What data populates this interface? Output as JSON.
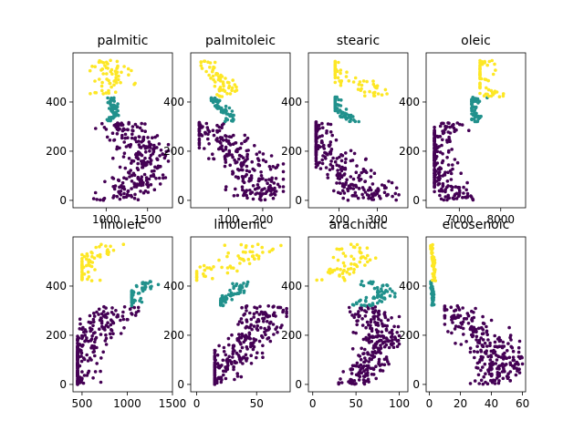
{
  "chart_data": [
    {
      "type": "scatter",
      "title": "palmitic",
      "xlim": [
        600,
        1800
      ],
      "ylim": [
        -30,
        600
      ],
      "xticks": [
        1000,
        1500
      ],
      "yticks": [
        0,
        200,
        400
      ],
      "x_clusters": [
        {
          "class": 0,
          "x_range": [
            850,
            1750
          ],
          "y_range": [
            0,
            320
          ]
        },
        {
          "class": 1,
          "x_range": [
            1000,
            1150
          ],
          "y_range": [
            320,
            420
          ]
        },
        {
          "class": 2,
          "x_range": [
            650,
            1350
          ],
          "y_range": [
            420,
            570
          ]
        }
      ]
    },
    {
      "type": "scatter",
      "title": "palmitoleic",
      "xlim": [
        -10,
        280
      ],
      "ylim": [
        -30,
        600
      ],
      "xticks": [
        100,
        200
      ],
      "yticks": [
        0,
        200,
        400
      ],
      "x_clusters": [
        {
          "class": 0,
          "x_range": [
            15,
            260
          ],
          "y_range": [
            0,
            320
          ]
        },
        {
          "class": 1,
          "x_range": [
            50,
            115
          ],
          "y_range": [
            320,
            420
          ]
        },
        {
          "class": 2,
          "x_range": [
            20,
            130
          ],
          "y_range": [
            420,
            570
          ]
        }
      ]
    },
    {
      "type": "scatter",
      "title": "stearic",
      "xlim": [
        120,
        380
      ],
      "ylim": [
        -30,
        600
      ],
      "xticks": [
        200,
        300
      ],
      "yticks": [
        0,
        200,
        400
      ],
      "x_clusters": [
        {
          "class": 0,
          "x_range": [
            140,
            370
          ],
          "y_range": [
            0,
            320
          ]
        },
        {
          "class": 1,
          "x_range": [
            190,
            260
          ],
          "y_range": [
            320,
            420
          ]
        },
        {
          "class": 2,
          "x_range": [
            190,
            370
          ],
          "y_range": [
            420,
            570
          ]
        }
      ]
    },
    {
      "type": "scatter",
      "title": "oleic",
      "xlim": [
        6200,
        8600
      ],
      "ylim": [
        -30,
        600
      ],
      "xticks": [
        7000,
        8000
      ],
      "yticks": [
        0,
        200,
        400
      ],
      "x_clusters": [
        {
          "class": 0,
          "x_range": [
            6400,
            8100
          ],
          "y_range": [
            0,
            320
          ]
        },
        {
          "class": 1,
          "x_range": [
            7300,
            7900
          ],
          "y_range": [
            320,
            420
          ]
        },
        {
          "class": 2,
          "x_range": [
            7500,
            8500
          ],
          "y_range": [
            420,
            570
          ]
        }
      ]
    },
    {
      "type": "scatter",
      "title": "linoleic",
      "xlim": [
        400,
        1500
      ],
      "ylim": [
        -30,
        600
      ],
      "xticks": [
        500,
        1000,
        1500
      ],
      "yticks": [
        0,
        200,
        400
      ],
      "x_clusters": [
        {
          "class": 0,
          "x_range": [
            450,
            1300
          ],
          "y_range": [
            0,
            320
          ]
        },
        {
          "class": 1,
          "x_range": [
            1050,
            1450
          ],
          "y_range": [
            320,
            420
          ]
        },
        {
          "class": 2,
          "x_range": [
            500,
            1000
          ],
          "y_range": [
            420,
            570
          ]
        }
      ]
    },
    {
      "type": "scatter",
      "title": "linolenic",
      "xlim": [
        -5,
        78
      ],
      "ylim": [
        -30,
        600
      ],
      "xticks": [
        0,
        50
      ],
      "yticks": [
        0,
        200,
        400
      ],
      "x_clusters": [
        {
          "class": 0,
          "x_range": [
            15,
            75
          ],
          "y_range": [
            0,
            320
          ]
        },
        {
          "class": 1,
          "x_range": [
            20,
            45
          ],
          "y_range": [
            320,
            420
          ]
        },
        {
          "class": 2,
          "x_range": [
            0,
            72
          ],
          "y_range": [
            420,
            570
          ]
        }
      ]
    },
    {
      "type": "scatter",
      "title": "arachidic",
      "xlim": [
        -5,
        110
      ],
      "ylim": [
        -30,
        600
      ],
      "xticks": [
        0,
        50,
        100
      ],
      "yticks": [
        0,
        200,
        400
      ],
      "x_clusters": [
        {
          "class": 0,
          "x_range": [
            30,
            100
          ],
          "y_range": [
            0,
            320
          ]
        },
        {
          "class": 1,
          "x_range": [
            45,
            95
          ],
          "y_range": [
            320,
            420
          ]
        },
        {
          "class": 2,
          "x_range": [
            0,
            75
          ],
          "y_range": [
            420,
            570
          ]
        }
      ]
    },
    {
      "type": "scatter",
      "title": "eicosenoic",
      "xlim": [
        -2,
        62
      ],
      "ylim": [
        -30,
        600
      ],
      "xticks": [
        0,
        20,
        40,
        60
      ],
      "yticks": [
        0,
        200,
        400
      ],
      "x_clusters": [
        {
          "class": 0,
          "x_range": [
            10,
            60
          ],
          "y_range": [
            0,
            320
          ]
        },
        {
          "class": 1,
          "x_range": [
            1,
            3
          ],
          "y_range": [
            320,
            420
          ]
        },
        {
          "class": 2,
          "x_range": [
            1,
            4
          ],
          "y_range": [
            420,
            570
          ]
        }
      ]
    }
  ],
  "colors": {
    "class0": "#440154",
    "class1": "#21918c",
    "class2": "#fde725"
  }
}
